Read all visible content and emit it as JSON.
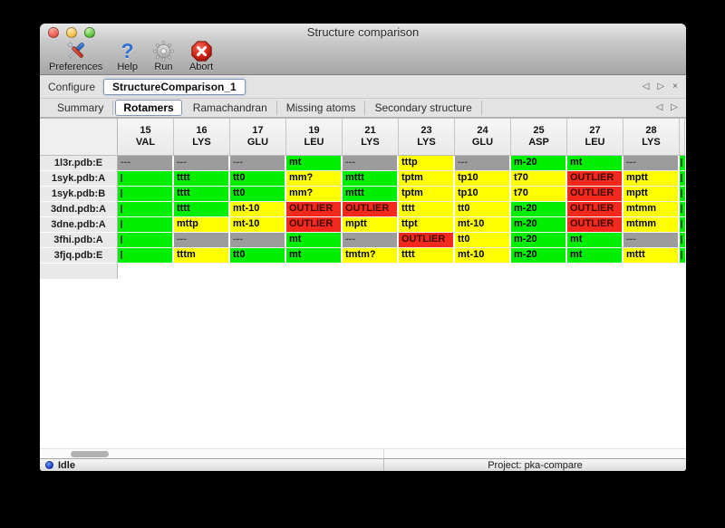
{
  "window": {
    "title": "Structure comparison"
  },
  "toolbar": {
    "items": [
      {
        "label": "Preferences",
        "icon": "tools-icon"
      },
      {
        "label": "Help",
        "icon": "question-mark-icon"
      },
      {
        "label": "Run",
        "icon": "gear-icon"
      },
      {
        "label": "Abort",
        "icon": "abort-x-icon"
      }
    ]
  },
  "configure": {
    "label": "Configure",
    "value": "StructureComparison_1",
    "nav": {
      "prev": "◁",
      "next": "▷",
      "close": "×"
    }
  },
  "tabs": {
    "items": [
      "Summary",
      "Rotamers",
      "Ramachandran",
      "Missing atoms",
      "Secondary structure"
    ],
    "selected": "Rotamers",
    "nav": {
      "prev": "◁",
      "next": "▷"
    }
  },
  "colors": {
    "green": "#00ef00",
    "yellow": "#ffff00",
    "red": "#f3291d",
    "gray": "#9c9c9c"
  },
  "table": {
    "columns": [
      {
        "number": "15",
        "residue": "VAL"
      },
      {
        "number": "16",
        "residue": "LYS"
      },
      {
        "number": "17",
        "residue": "GLU"
      },
      {
        "number": "19",
        "residue": "LEU"
      },
      {
        "number": "21",
        "residue": "LYS"
      },
      {
        "number": "23",
        "residue": "LYS"
      },
      {
        "number": "24",
        "residue": "GLU"
      },
      {
        "number": "25",
        "residue": "ASP"
      },
      {
        "number": "27",
        "residue": "LEU"
      },
      {
        "number": "28",
        "residue": "LYS"
      }
    ],
    "rows": [
      {
        "label": "1l3r.pdb:E",
        "partial": "green",
        "cells": [
          {
            "v": "---",
            "c": "gray"
          },
          {
            "v": "---",
            "c": "gray"
          },
          {
            "v": "---",
            "c": "gray"
          },
          {
            "v": "mt",
            "c": "green"
          },
          {
            "v": "---",
            "c": "gray"
          },
          {
            "v": "tttp",
            "c": "yellow"
          },
          {
            "v": "---",
            "c": "gray"
          },
          {
            "v": "m-20",
            "c": "green"
          },
          {
            "v": "mt",
            "c": "green"
          },
          {
            "v": "---",
            "c": "gray"
          }
        ]
      },
      {
        "label": "1syk.pdb:A",
        "partial": "green",
        "cells": [
          {
            "v": "",
            "c": "green",
            "clip": true
          },
          {
            "v": "tttt",
            "c": "green"
          },
          {
            "v": "tt0",
            "c": "green"
          },
          {
            "v": "mm?",
            "c": "yellow"
          },
          {
            "v": "mttt",
            "c": "green"
          },
          {
            "v": "tptm",
            "c": "yellow"
          },
          {
            "v": "tp10",
            "c": "yellow"
          },
          {
            "v": "t70",
            "c": "yellow"
          },
          {
            "v": "OUTLIER",
            "c": "red"
          },
          {
            "v": "mptt",
            "c": "yellow"
          }
        ]
      },
      {
        "label": "1syk.pdb:B",
        "partial": "green",
        "cells": [
          {
            "v": "",
            "c": "green",
            "clip": true
          },
          {
            "v": "tttt",
            "c": "green"
          },
          {
            "v": "tt0",
            "c": "green"
          },
          {
            "v": "mm?",
            "c": "yellow"
          },
          {
            "v": "mttt",
            "c": "green"
          },
          {
            "v": "tptm",
            "c": "yellow"
          },
          {
            "v": "tp10",
            "c": "yellow"
          },
          {
            "v": "t70",
            "c": "yellow"
          },
          {
            "v": "OUTLIER",
            "c": "red"
          },
          {
            "v": "mptt",
            "c": "yellow"
          }
        ]
      },
      {
        "label": "3dnd.pdb:A",
        "partial": "green",
        "cells": [
          {
            "v": "",
            "c": "green",
            "clip": true
          },
          {
            "v": "tttt",
            "c": "green"
          },
          {
            "v": "mt-10",
            "c": "yellow"
          },
          {
            "v": "OUTLIER",
            "c": "red"
          },
          {
            "v": "OUTLIER",
            "c": "red"
          },
          {
            "v": "tttt",
            "c": "yellow"
          },
          {
            "v": "tt0",
            "c": "yellow"
          },
          {
            "v": "m-20",
            "c": "green"
          },
          {
            "v": "OUTLIER",
            "c": "red"
          },
          {
            "v": "mtmm",
            "c": "yellow"
          }
        ]
      },
      {
        "label": "3dne.pdb:A",
        "partial": "green",
        "cells": [
          {
            "v": "",
            "c": "green",
            "clip": true
          },
          {
            "v": "mttp",
            "c": "yellow"
          },
          {
            "v": "mt-10",
            "c": "yellow"
          },
          {
            "v": "OUTLIER",
            "c": "red"
          },
          {
            "v": "mptt",
            "c": "yellow"
          },
          {
            "v": "ttpt",
            "c": "yellow"
          },
          {
            "v": "mt-10",
            "c": "yellow"
          },
          {
            "v": "m-20",
            "c": "green"
          },
          {
            "v": "OUTLIER",
            "c": "red"
          },
          {
            "v": "mtmm",
            "c": "yellow"
          }
        ]
      },
      {
        "label": "3fhi.pdb:A",
        "partial": "green",
        "cells": [
          {
            "v": "",
            "c": "green",
            "clip": true
          },
          {
            "v": "---",
            "c": "gray"
          },
          {
            "v": "---",
            "c": "gray"
          },
          {
            "v": "mt",
            "c": "green"
          },
          {
            "v": "---",
            "c": "gray"
          },
          {
            "v": "OUTLIER",
            "c": "red"
          },
          {
            "v": "tt0",
            "c": "yellow"
          },
          {
            "v": "m-20",
            "c": "green"
          },
          {
            "v": "mt",
            "c": "green"
          },
          {
            "v": "---",
            "c": "gray"
          }
        ]
      },
      {
        "label": "3fjq.pdb:E",
        "partial": "green",
        "cells": [
          {
            "v": "",
            "c": "green",
            "clip": true
          },
          {
            "v": "tttm",
            "c": "yellow"
          },
          {
            "v": "tt0",
            "c": "green"
          },
          {
            "v": "mt",
            "c": "green"
          },
          {
            "v": "tmtm?",
            "c": "yellow"
          },
          {
            "v": "tttt",
            "c": "yellow"
          },
          {
            "v": "mt-10",
            "c": "yellow"
          },
          {
            "v": "m-20",
            "c": "green"
          },
          {
            "v": "mt",
            "c": "green"
          },
          {
            "v": "mttt",
            "c": "yellow"
          }
        ]
      }
    ]
  },
  "statusbar": {
    "state": "Idle",
    "project": "Project: pka-compare"
  }
}
